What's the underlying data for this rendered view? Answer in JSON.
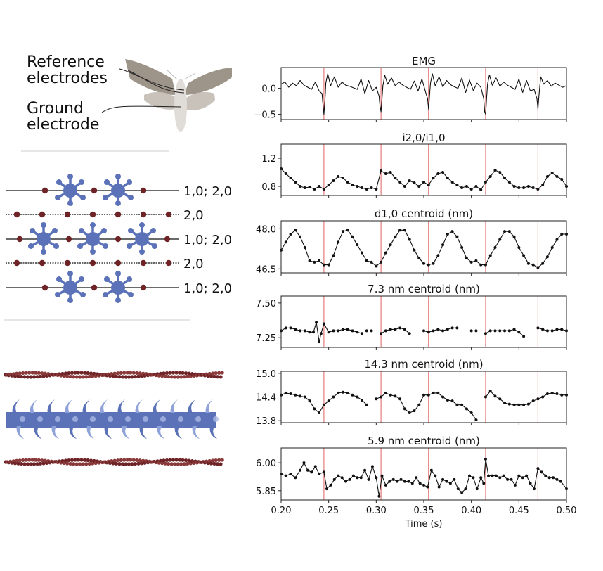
{
  "diagram": {
    "reference_label_1": "Reference",
    "reference_label_2": "electrodes",
    "ground_label_1": "Ground",
    "ground_label_2": "electrode",
    "lattice_labels": [
      "1,0; 2,0",
      "2,0",
      "1,0; 2,0",
      "2,0",
      "1,0; 2,0"
    ],
    "colors": {
      "moth_wing": "#9e958a",
      "moth_hindwing": "#c9c2ba",
      "moth_body": "#e0dcd8",
      "myosin": "#5b72b8",
      "actin": "#6e2426"
    }
  },
  "chart_data": [
    {
      "type": "line",
      "title": "EMG",
      "yticks": [
        0.0,
        -0.5
      ],
      "ytick_labels": [
        "0.0",
        "−0.5"
      ],
      "ylim": [
        -0.6,
        0.4
      ],
      "markers": false,
      "x": [
        0.2,
        0.204,
        0.208,
        0.212,
        0.216,
        0.22,
        0.224,
        0.228,
        0.232,
        0.236,
        0.24,
        0.243,
        0.244,
        0.245,
        0.246,
        0.247,
        0.249,
        0.252,
        0.256,
        0.26,
        0.264,
        0.268,
        0.272,
        0.276,
        0.28,
        0.284,
        0.288,
        0.292,
        0.296,
        0.3,
        0.303,
        0.304,
        0.305,
        0.306,
        0.307,
        0.309,
        0.312,
        0.316,
        0.32,
        0.324,
        0.328,
        0.332,
        0.336,
        0.34,
        0.344,
        0.348,
        0.352,
        0.354,
        0.355,
        0.356,
        0.357,
        0.359,
        0.362,
        0.366,
        0.37,
        0.374,
        0.378,
        0.382,
        0.386,
        0.39,
        0.394,
        0.398,
        0.402,
        0.406,
        0.41,
        0.413,
        0.414,
        0.415,
        0.416,
        0.417,
        0.419,
        0.422,
        0.426,
        0.43,
        0.434,
        0.438,
        0.442,
        0.446,
        0.45,
        0.454,
        0.458,
        0.462,
        0.466,
        0.469,
        0.47,
        0.471,
        0.472,
        0.473,
        0.476,
        0.48,
        0.484,
        0.488,
        0.492,
        0.496,
        0.5
      ],
      "y": [
        0.08,
        0.12,
        0.02,
        0.1,
        0.05,
        0.15,
        0.06,
        0.02,
        -0.02,
        0.12,
        -0.05,
        -0.1,
        -0.3,
        -0.5,
        -0.25,
        0.1,
        0.28,
        0.05,
        0.22,
        0.02,
        0.12,
        0.06,
        0.04,
        0.01,
        -0.02,
        0.18,
        -0.1,
        0.15,
        -0.05,
        0.02,
        -0.15,
        -0.35,
        -0.45,
        -0.2,
        0.05,
        0.25,
        0.08,
        0.2,
        0.05,
        0.12,
        0.06,
        0.02,
        -0.02,
        0.14,
        -0.05,
        0.18,
        -0.08,
        -0.2,
        -0.4,
        -0.15,
        0.1,
        0.28,
        0.05,
        0.22,
        0.03,
        0.15,
        0.07,
        0.03,
        0.0,
        0.2,
        -0.08,
        0.16,
        -0.04,
        0.1,
        0.02,
        -0.2,
        -0.45,
        -0.5,
        -0.2,
        0.08,
        0.26,
        0.06,
        0.2,
        0.04,
        0.12,
        0.06,
        0.02,
        -0.02,
        0.18,
        -0.08,
        0.15,
        -0.05,
        -0.02,
        -0.2,
        -0.4,
        -0.15,
        0.05,
        0.22,
        0.08,
        0.15,
        0.04,
        0.1,
        0.06,
        0.02,
        0.05
      ]
    },
    {
      "type": "line",
      "title": "i2,0/i1,0",
      "yticks": [
        1.2,
        0.8
      ],
      "ytick_labels": [
        "1.2",
        "0.8"
      ],
      "ylim": [
        0.67,
        1.4
      ],
      "markers": true,
      "x": [
        0.2,
        0.205,
        0.21,
        0.215,
        0.22,
        0.225,
        0.23,
        0.235,
        0.24,
        0.245,
        0.25,
        0.255,
        0.26,
        0.265,
        0.27,
        0.275,
        0.28,
        0.285,
        0.29,
        0.295,
        0.3,
        0.305,
        0.31,
        0.315,
        0.32,
        0.325,
        0.33,
        0.335,
        0.34,
        0.345,
        0.35,
        0.355,
        0.36,
        0.365,
        0.37,
        0.375,
        0.38,
        0.385,
        0.39,
        0.395,
        0.4,
        0.405,
        0.41,
        0.415,
        0.42,
        0.425,
        0.43,
        0.435,
        0.44,
        0.445,
        0.45,
        0.455,
        0.46,
        0.465,
        0.47,
        0.475,
        0.48,
        0.485,
        0.49,
        0.495,
        0.5
      ],
      "y": [
        1.05,
        0.98,
        0.92,
        0.86,
        0.8,
        0.78,
        0.79,
        0.76,
        0.8,
        0.76,
        0.82,
        0.88,
        0.94,
        0.92,
        0.86,
        0.82,
        0.8,
        0.78,
        0.76,
        0.78,
        0.76,
        1.02,
        0.98,
        1.0,
        0.92,
        0.86,
        0.8,
        0.88,
        0.85,
        0.8,
        0.86,
        0.82,
        0.92,
        0.98,
        1.0,
        0.92,
        0.86,
        0.82,
        0.78,
        0.8,
        0.76,
        0.8,
        0.75,
        0.86,
        0.94,
        1.03,
        1.0,
        0.92,
        0.86,
        0.8,
        0.78,
        0.78,
        0.8,
        0.78,
        0.76,
        0.82,
        0.94,
        0.99,
        0.94,
        0.9,
        0.8
      ]
    },
    {
      "type": "line",
      "title": "d1,0 centroid (nm)",
      "yticks": [
        48.0,
        46.5
      ],
      "ytick_labels": [
        "48.0",
        "46.5"
      ],
      "ylim": [
        46.35,
        48.3
      ],
      "markers": true,
      "x": [
        0.2,
        0.205,
        0.21,
        0.215,
        0.22,
        0.225,
        0.23,
        0.235,
        0.24,
        0.245,
        0.25,
        0.255,
        0.26,
        0.265,
        0.27,
        0.275,
        0.28,
        0.285,
        0.29,
        0.295,
        0.3,
        0.305,
        0.31,
        0.315,
        0.32,
        0.325,
        0.33,
        0.335,
        0.34,
        0.345,
        0.35,
        0.355,
        0.36,
        0.365,
        0.37,
        0.375,
        0.38,
        0.385,
        0.39,
        0.395,
        0.4,
        0.405,
        0.41,
        0.415,
        0.42,
        0.425,
        0.43,
        0.435,
        0.44,
        0.445,
        0.45,
        0.455,
        0.46,
        0.465,
        0.47,
        0.475,
        0.48,
        0.485,
        0.49,
        0.495,
        0.5
      ],
      "y": [
        47.2,
        47.5,
        47.8,
        47.95,
        47.7,
        47.3,
        46.8,
        46.75,
        46.8,
        46.65,
        46.65,
        47.0,
        47.5,
        47.9,
        47.95,
        47.7,
        47.4,
        47.1,
        46.8,
        46.75,
        46.6,
        46.75,
        47.1,
        47.4,
        47.7,
        47.95,
        47.95,
        47.6,
        47.2,
        46.9,
        46.7,
        46.65,
        46.7,
        47.0,
        47.4,
        47.8,
        47.9,
        47.7,
        47.3,
        46.9,
        46.75,
        46.8,
        46.65,
        46.65,
        47.0,
        47.3,
        47.6,
        47.9,
        47.9,
        47.7,
        47.3,
        47.0,
        46.7,
        46.65,
        46.55,
        46.7,
        46.95,
        47.3,
        47.6,
        47.8,
        47.8
      ]
    },
    {
      "type": "line",
      "title": "7.3 nm centroid (nm)",
      "yticks": [
        7.5,
        7.25
      ],
      "ytick_labels": [
        "7.50",
        "7.25"
      ],
      "ylim": [
        7.18,
        7.55
      ],
      "markers": true,
      "x": [
        0.2,
        0.205,
        0.21,
        0.215,
        0.22,
        0.225,
        0.23,
        0.234,
        0.237,
        0.24,
        0.242,
        0.245,
        0.25,
        0.255,
        0.26,
        0.265,
        0.27,
        0.275,
        0.28,
        0.285,
        null,
        0.295,
        null,
        0.305,
        0.31,
        0.315,
        0.32,
        0.325,
        0.33,
        0.335,
        null,
        0.35,
        0.355,
        0.36,
        0.365,
        0.37,
        0.375,
        0.38,
        0.385,
        null,
        0.4,
        null,
        0.415,
        0.42,
        0.425,
        0.43,
        0.435,
        0.44,
        0.445,
        0.45,
        0.455,
        null,
        0.47,
        0.475,
        0.48,
        0.485,
        0.49,
        0.495,
        0.5
      ],
      "y": [
        7.3,
        7.32,
        7.32,
        7.31,
        7.3,
        7.3,
        7.29,
        7.29,
        7.36,
        7.22,
        7.28,
        7.35,
        7.29,
        7.3,
        7.3,
        7.31,
        7.31,
        7.3,
        7.29,
        7.28,
        null,
        7.3,
        null,
        7.28,
        7.3,
        7.31,
        7.31,
        7.32,
        7.31,
        7.28,
        null,
        7.3,
        7.29,
        7.3,
        7.31,
        7.3,
        7.31,
        7.32,
        7.32,
        null,
        7.3,
        null,
        7.28,
        7.3,
        7.3,
        7.3,
        7.3,
        7.3,
        7.31,
        7.29,
        7.26,
        null,
        7.32,
        7.31,
        7.3,
        7.3,
        7.31,
        7.31,
        7.3
      ],
      "point_only": [
        0.29,
        0.405
      ]
    },
    {
      "type": "line",
      "title": "14.3 nm centroid (nm)",
      "yticks": [
        15.0,
        14.4,
        13.8
      ],
      "ytick_labels": [
        "15.0",
        "14.4",
        "13.8"
      ],
      "ylim": [
        13.75,
        15.05
      ],
      "markers": true,
      "x": [
        0.2,
        0.205,
        0.21,
        0.215,
        0.22,
        0.225,
        0.23,
        0.235,
        0.24,
        0.245,
        0.25,
        0.255,
        0.26,
        0.265,
        0.27,
        0.275,
        0.28,
        0.285,
        0.29,
        null,
        0.3,
        0.305,
        0.31,
        0.315,
        0.32,
        0.325,
        0.33,
        0.335,
        0.34,
        0.345,
        0.35,
        0.355,
        0.36,
        0.365,
        0.37,
        0.375,
        0.38,
        0.385,
        0.39,
        0.395,
        0.4,
        0.405,
        null,
        0.415,
        0.42,
        0.425,
        0.43,
        0.435,
        0.44,
        0.445,
        0.45,
        0.455,
        0.46,
        0.465,
        0.47,
        0.475,
        0.48,
        0.485,
        0.49,
        0.495,
        0.5
      ],
      "y": [
        14.45,
        14.5,
        14.48,
        14.45,
        14.42,
        14.4,
        14.3,
        14.1,
        14.0,
        14.2,
        14.3,
        14.4,
        14.5,
        14.52,
        14.5,
        14.45,
        14.4,
        14.32,
        14.2,
        null,
        14.35,
        14.4,
        14.5,
        14.45,
        14.42,
        14.35,
        14.1,
        14.0,
        14.05,
        14.2,
        14.45,
        14.45,
        14.5,
        14.5,
        14.4,
        14.32,
        14.3,
        14.2,
        14.2,
        14.1,
        14.0,
        13.82,
        null,
        14.4,
        14.55,
        14.42,
        14.35,
        14.25,
        14.22,
        14.2,
        14.2,
        14.2,
        14.22,
        14.3,
        14.35,
        14.4,
        14.48,
        14.5,
        14.48,
        14.45,
        14.45
      ]
    },
    {
      "type": "line",
      "title": "5.9 nm centroid (nm)",
      "yticks": [
        6.0,
        5.85
      ],
      "ytick_labels": [
        "6.00",
        "5.85"
      ],
      "ylim": [
        5.8,
        6.08
      ],
      "markers": true,
      "x": [
        0.2,
        0.205,
        0.21,
        0.215,
        0.22,
        0.224,
        0.228,
        0.232,
        0.236,
        0.24,
        0.245,
        0.248,
        0.252,
        0.256,
        0.26,
        0.264,
        0.268,
        0.272,
        0.276,
        0.28,
        0.284,
        0.288,
        0.292,
        0.296,
        0.3,
        0.303,
        0.306,
        0.31,
        0.314,
        0.318,
        0.322,
        0.326,
        0.33,
        0.334,
        0.338,
        0.342,
        0.346,
        0.35,
        0.354,
        0.358,
        0.362,
        0.366,
        0.37,
        0.374,
        0.378,
        0.382,
        0.386,
        0.39,
        0.394,
        0.398,
        0.402,
        0.406,
        0.41,
        0.413,
        0.415,
        0.418,
        0.422,
        0.426,
        0.43,
        0.434,
        0.438,
        0.442,
        0.446,
        0.45,
        0.454,
        0.458,
        0.462,
        0.466,
        0.47,
        0.474,
        0.478,
        0.482,
        0.486,
        0.49,
        0.494,
        0.5
      ],
      "y": [
        5.94,
        5.93,
        5.94,
        5.92,
        5.96,
        6.0,
        5.96,
        5.95,
        5.98,
        5.94,
        5.95,
        5.86,
        5.88,
        5.91,
        5.93,
        5.92,
        5.9,
        5.91,
        5.93,
        5.92,
        5.92,
        5.96,
        5.91,
        5.98,
        5.92,
        5.82,
        5.93,
        5.88,
        5.9,
        5.91,
        5.9,
        5.91,
        5.9,
        5.9,
        5.89,
        5.92,
        5.89,
        5.88,
        5.87,
        5.96,
        5.93,
        5.87,
        5.91,
        5.9,
        5.89,
        5.91,
        5.86,
        5.84,
        5.86,
        5.93,
        5.92,
        5.86,
        5.92,
        5.89,
        6.02,
        5.93,
        5.93,
        5.93,
        5.92,
        5.93,
        5.91,
        5.91,
        5.88,
        5.93,
        5.92,
        5.93,
        5.89,
        5.86,
        5.97,
        5.95,
        5.93,
        5.92,
        5.92,
        5.91,
        5.9,
        5.86
      ]
    }
  ],
  "shared_axis": {
    "xlim": [
      0.2,
      0.5
    ],
    "xticks": [
      0.2,
      0.25,
      0.3,
      0.35,
      0.4,
      0.45,
      0.5
    ],
    "xtick_labels": [
      "0.20",
      "0.25",
      "0.30",
      "0.35",
      "0.40",
      "0.45",
      "0.50"
    ],
    "xlabel": "Time (s)",
    "event_lines": [
      0.245,
      0.305,
      0.355,
      0.415,
      0.47
    ],
    "event_color": "#e06060"
  }
}
